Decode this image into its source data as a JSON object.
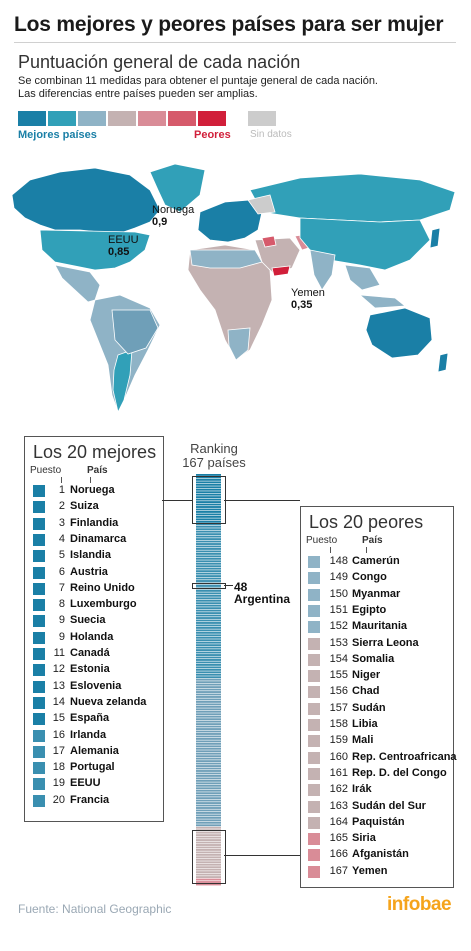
{
  "title": "Los mejores y peores países para ser mujer",
  "subtitle": "Puntuación general de cada nación",
  "description": [
    "Se combinan 11 medidas para obtener el puntaje general de cada nación.",
    "Las diferencias entre países pueden ser amplias."
  ],
  "legend": {
    "best_label": "Mejores países",
    "worst_label": "Peores",
    "nodata_label": "Sin datos",
    "colors": [
      "#1a7fa6",
      "#31a0b8",
      "#8fb3c6",
      "#c4b2b2",
      "#d98c97",
      "#d65a6b",
      "#d11f3a",
      "#cccccc"
    ]
  },
  "map_labels": {
    "norway": {
      "name": "Noruega",
      "value": "0,9"
    },
    "usa": {
      "name": "EEUU",
      "value": "0,85"
    },
    "yemen": {
      "name": "Yemen",
      "value": "0,35"
    }
  },
  "best": {
    "title": "Los 20 mejores",
    "col_rank": "Puesto",
    "col_country": "País",
    "rows": [
      {
        "rank": "1",
        "country": "Noruega",
        "color": "#1a7fa6"
      },
      {
        "rank": "2",
        "country": "Suiza",
        "color": "#1a7fa6"
      },
      {
        "rank": "3",
        "country": "Finlandia",
        "color": "#1a7fa6"
      },
      {
        "rank": "4",
        "country": "Dinamarca",
        "color": "#1a7fa6"
      },
      {
        "rank": "5",
        "country": "Islandia",
        "color": "#1a7fa6"
      },
      {
        "rank": "6",
        "country": "Austria",
        "color": "#1a7fa6"
      },
      {
        "rank": "7",
        "country": "Reino Unido",
        "color": "#1a7fa6"
      },
      {
        "rank": "8",
        "country": "Luxemburgo",
        "color": "#1a7fa6"
      },
      {
        "rank": "9",
        "country": "Suecia",
        "color": "#1a7fa6"
      },
      {
        "rank": "9",
        "country": "Holanda",
        "color": "#1a7fa6"
      },
      {
        "rank": "11",
        "country": "Canadá",
        "color": "#1a7fa6"
      },
      {
        "rank": "12",
        "country": "Estonia",
        "color": "#1a7fa6"
      },
      {
        "rank": "13",
        "country": "Eslovenia",
        "color": "#1a7fa6"
      },
      {
        "rank": "14",
        "country": "Nueva zelanda",
        "color": "#1a7fa6"
      },
      {
        "rank": "15",
        "country": "España",
        "color": "#1a7fa6"
      },
      {
        "rank": "16",
        "country": "Irlanda",
        "color": "#3a8fb0"
      },
      {
        "rank": "17",
        "country": "Alemania",
        "color": "#3a8fb0"
      },
      {
        "rank": "18",
        "country": "Portugal",
        "color": "#3a8fb0"
      },
      {
        "rank": "19",
        "country": "EEUU",
        "color": "#3a8fb0"
      },
      {
        "rank": "20",
        "country": "Francia",
        "color": "#3a8fb0"
      }
    ]
  },
  "worst": {
    "title": "Los 20 peores",
    "col_rank": "Puesto",
    "col_country": "País",
    "rows": [
      {
        "rank": "148",
        "country": "Camerún",
        "color": "#8fb3c6"
      },
      {
        "rank": "149",
        "country": "Congo",
        "color": "#8fb3c6"
      },
      {
        "rank": "150",
        "country": "Myanmar",
        "color": "#8fb3c6"
      },
      {
        "rank": "151",
        "country": "Egipto",
        "color": "#8fb3c6"
      },
      {
        "rank": "152",
        "country": "Mauritania",
        "color": "#8fb3c6"
      },
      {
        "rank": "153",
        "country": "Sierra Leona",
        "color": "#c4b2b2"
      },
      {
        "rank": "154",
        "country": "Somalia",
        "color": "#c4b2b2"
      },
      {
        "rank": "155",
        "country": "Niger",
        "color": "#c4b2b2"
      },
      {
        "rank": "156",
        "country": "Chad",
        "color": "#c4b2b2"
      },
      {
        "rank": "157",
        "country": "Sudán",
        "color": "#c4b2b2"
      },
      {
        "rank": "158",
        "country": "Libia",
        "color": "#c4b2b2"
      },
      {
        "rank": "159",
        "country": "Mali",
        "color": "#c4b2b2"
      },
      {
        "rank": "160",
        "country": "Rep. Centroafricana",
        "color": "#c4b2b2"
      },
      {
        "rank": "161",
        "country": "Rep. D. del Congo",
        "color": "#c4b2b2"
      },
      {
        "rank": "162",
        "country": "Irák",
        "color": "#c4b2b2"
      },
      {
        "rank": "163",
        "country": "Sudán del Sur",
        "color": "#c4b2b2"
      },
      {
        "rank": "164",
        "country": "Paquistán",
        "color": "#c4b2b2"
      },
      {
        "rank": "165",
        "country": "Siria",
        "color": "#d98c97"
      },
      {
        "rank": "166",
        "country": "Afganistán",
        "color": "#d98c97"
      },
      {
        "rank": "167",
        "country": "Yemen",
        "color": "#d98c97"
      }
    ]
  },
  "ranking": {
    "title": "Ranking",
    "subtitle": "167 países",
    "total": 167,
    "argentina_rank": "48",
    "argentina_name": "Argentina"
  },
  "source": "Fuente: National Geographic",
  "brand": "infobae"
}
